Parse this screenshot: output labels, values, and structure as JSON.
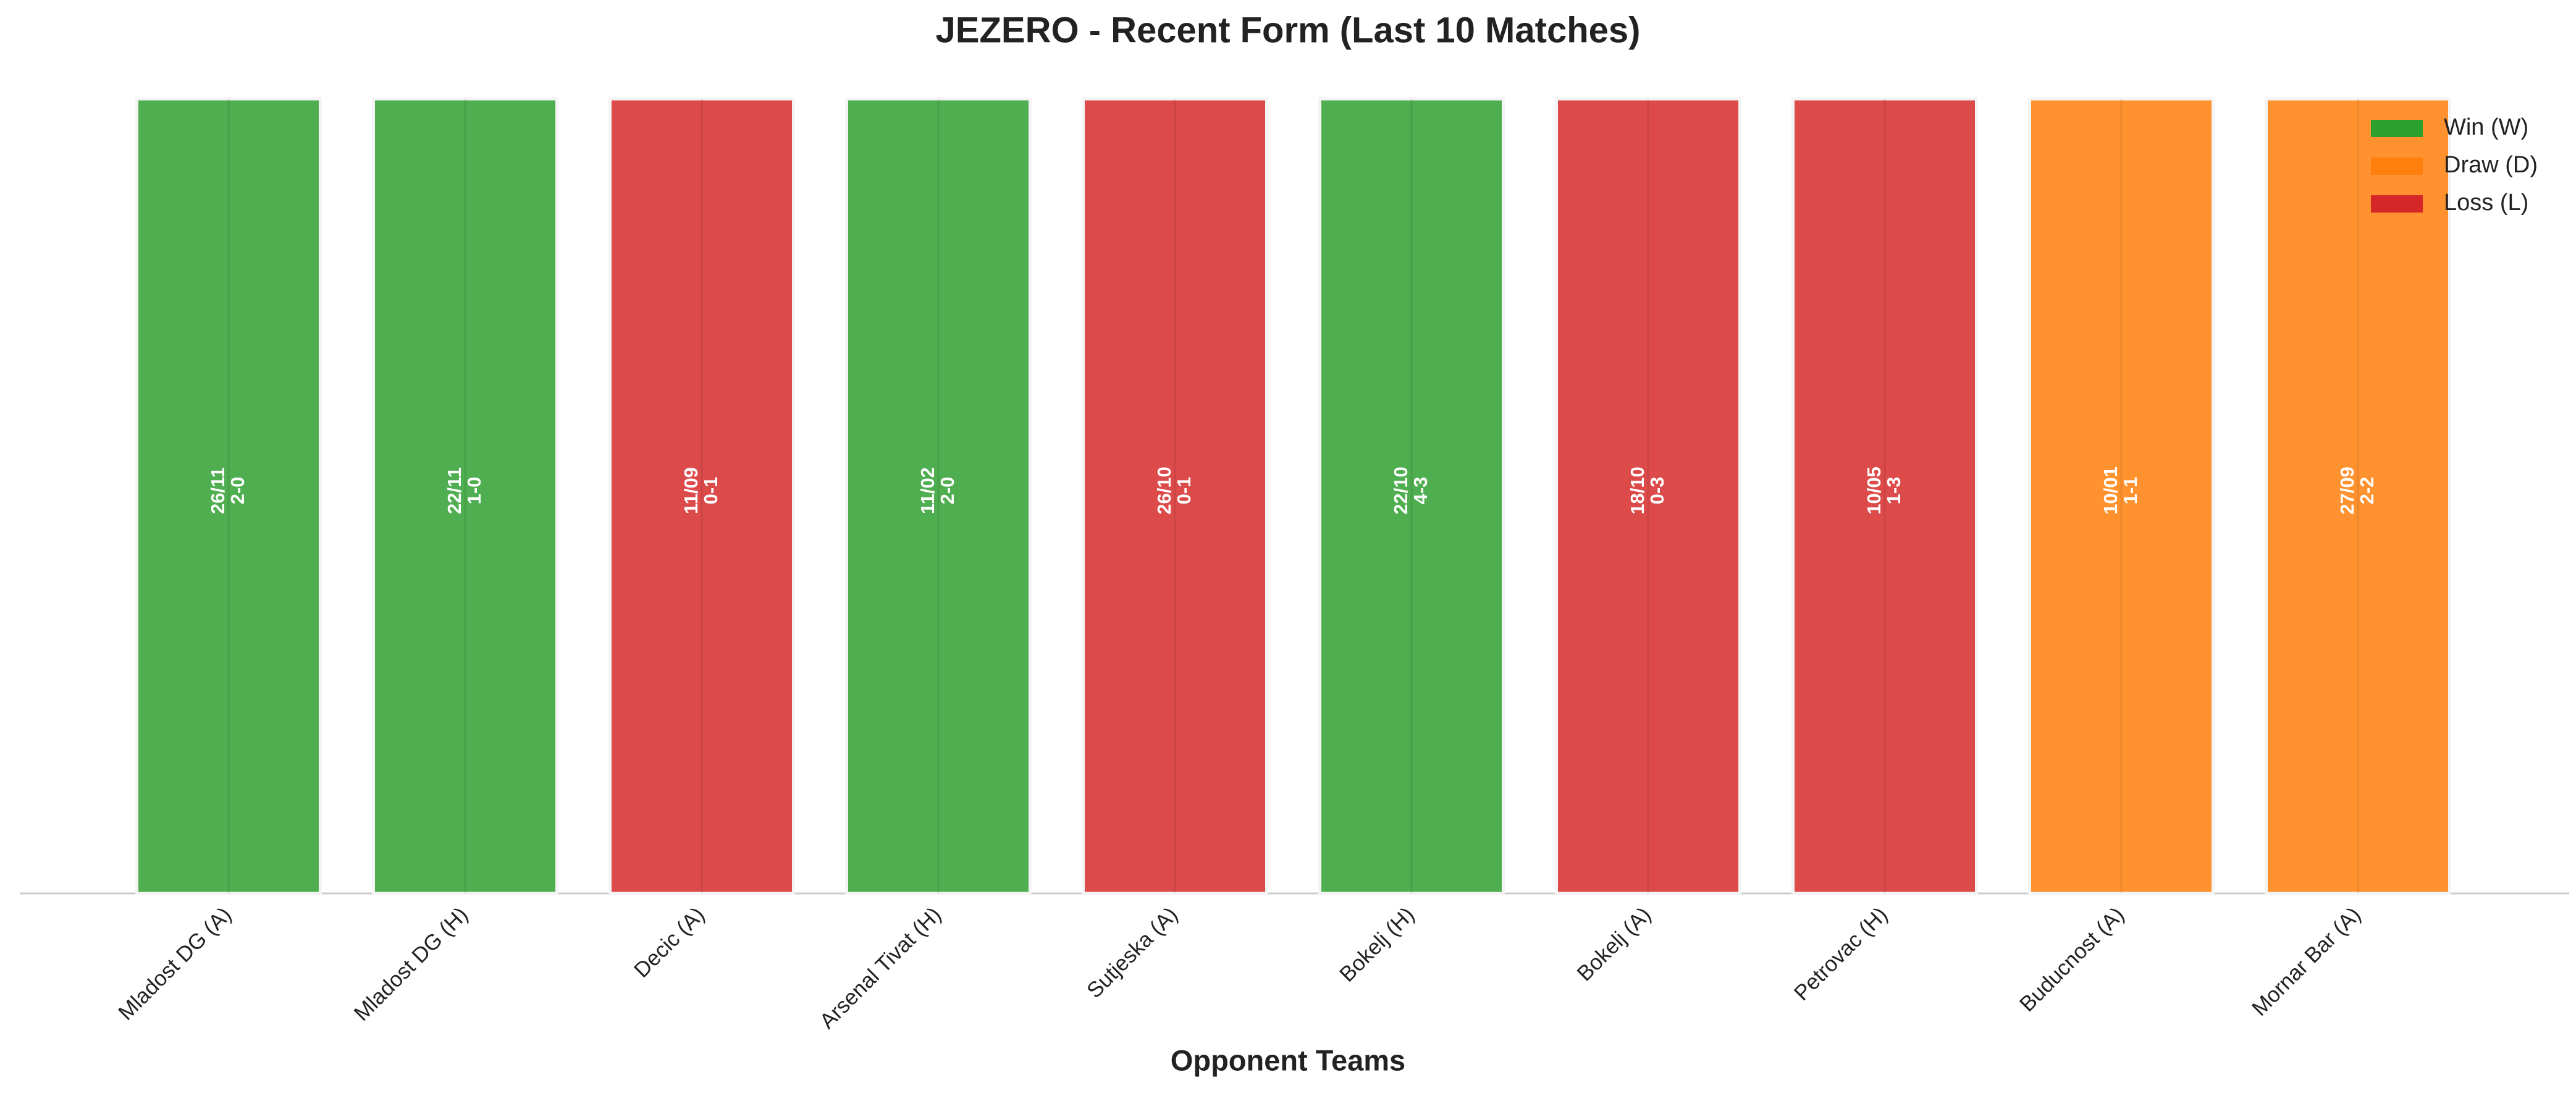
{
  "chart_data": {
    "type": "bar",
    "title": "JEZERO - Recent Form (Last 10 Matches)",
    "x_label": "Opponent Teams",
    "categories": [
      "Mladost DG (A)",
      "Mladost DG (H)",
      "Decic (A)",
      "Arsenal Tivat (H)",
      "Sutjeska (A)",
      "Bokelj (H)",
      "Bokelj (A)",
      "Petrovac (H)",
      "Buducnost (A)",
      "Mornar Bar (A)"
    ],
    "series": [
      {
        "name": "Win (W)",
        "color": "#4fae4f",
        "values": [
          1,
          1,
          null,
          1,
          null,
          1,
          null,
          null,
          null,
          null
        ]
      },
      {
        "name": "Draw (D)",
        "color": "#ff922f",
        "values": [
          null,
          null,
          null,
          null,
          null,
          null,
          null,
          null,
          1,
          1
        ]
      },
      {
        "name": "Loss (L)",
        "color": "#dd4a4a",
        "values": [
          null,
          null,
          1,
          null,
          1,
          null,
          1,
          1,
          null,
          null
        ]
      }
    ],
    "legend_colors": [
      "#2ca02c",
      "#ff7f0e",
      "#d62728"
    ],
    "annotations": [
      {
        "date": "26/11",
        "score": "2-0"
      },
      {
        "date": "22/11",
        "score": "1-0"
      },
      {
        "date": "11/09",
        "score": "0-1"
      },
      {
        "date": "11/02",
        "score": "2-0"
      },
      {
        "date": "26/10",
        "score": "0-1"
      },
      {
        "date": "22/10",
        "score": "4-3"
      },
      {
        "date": "18/10",
        "score": "0-3"
      },
      {
        "date": "10/05",
        "score": "1-3"
      },
      {
        "date": "10/01",
        "score": "1-1"
      },
      {
        "date": "27/09",
        "score": "2-2"
      }
    ],
    "ylim": [
      0,
      1
    ],
    "legend": "upper right"
  }
}
